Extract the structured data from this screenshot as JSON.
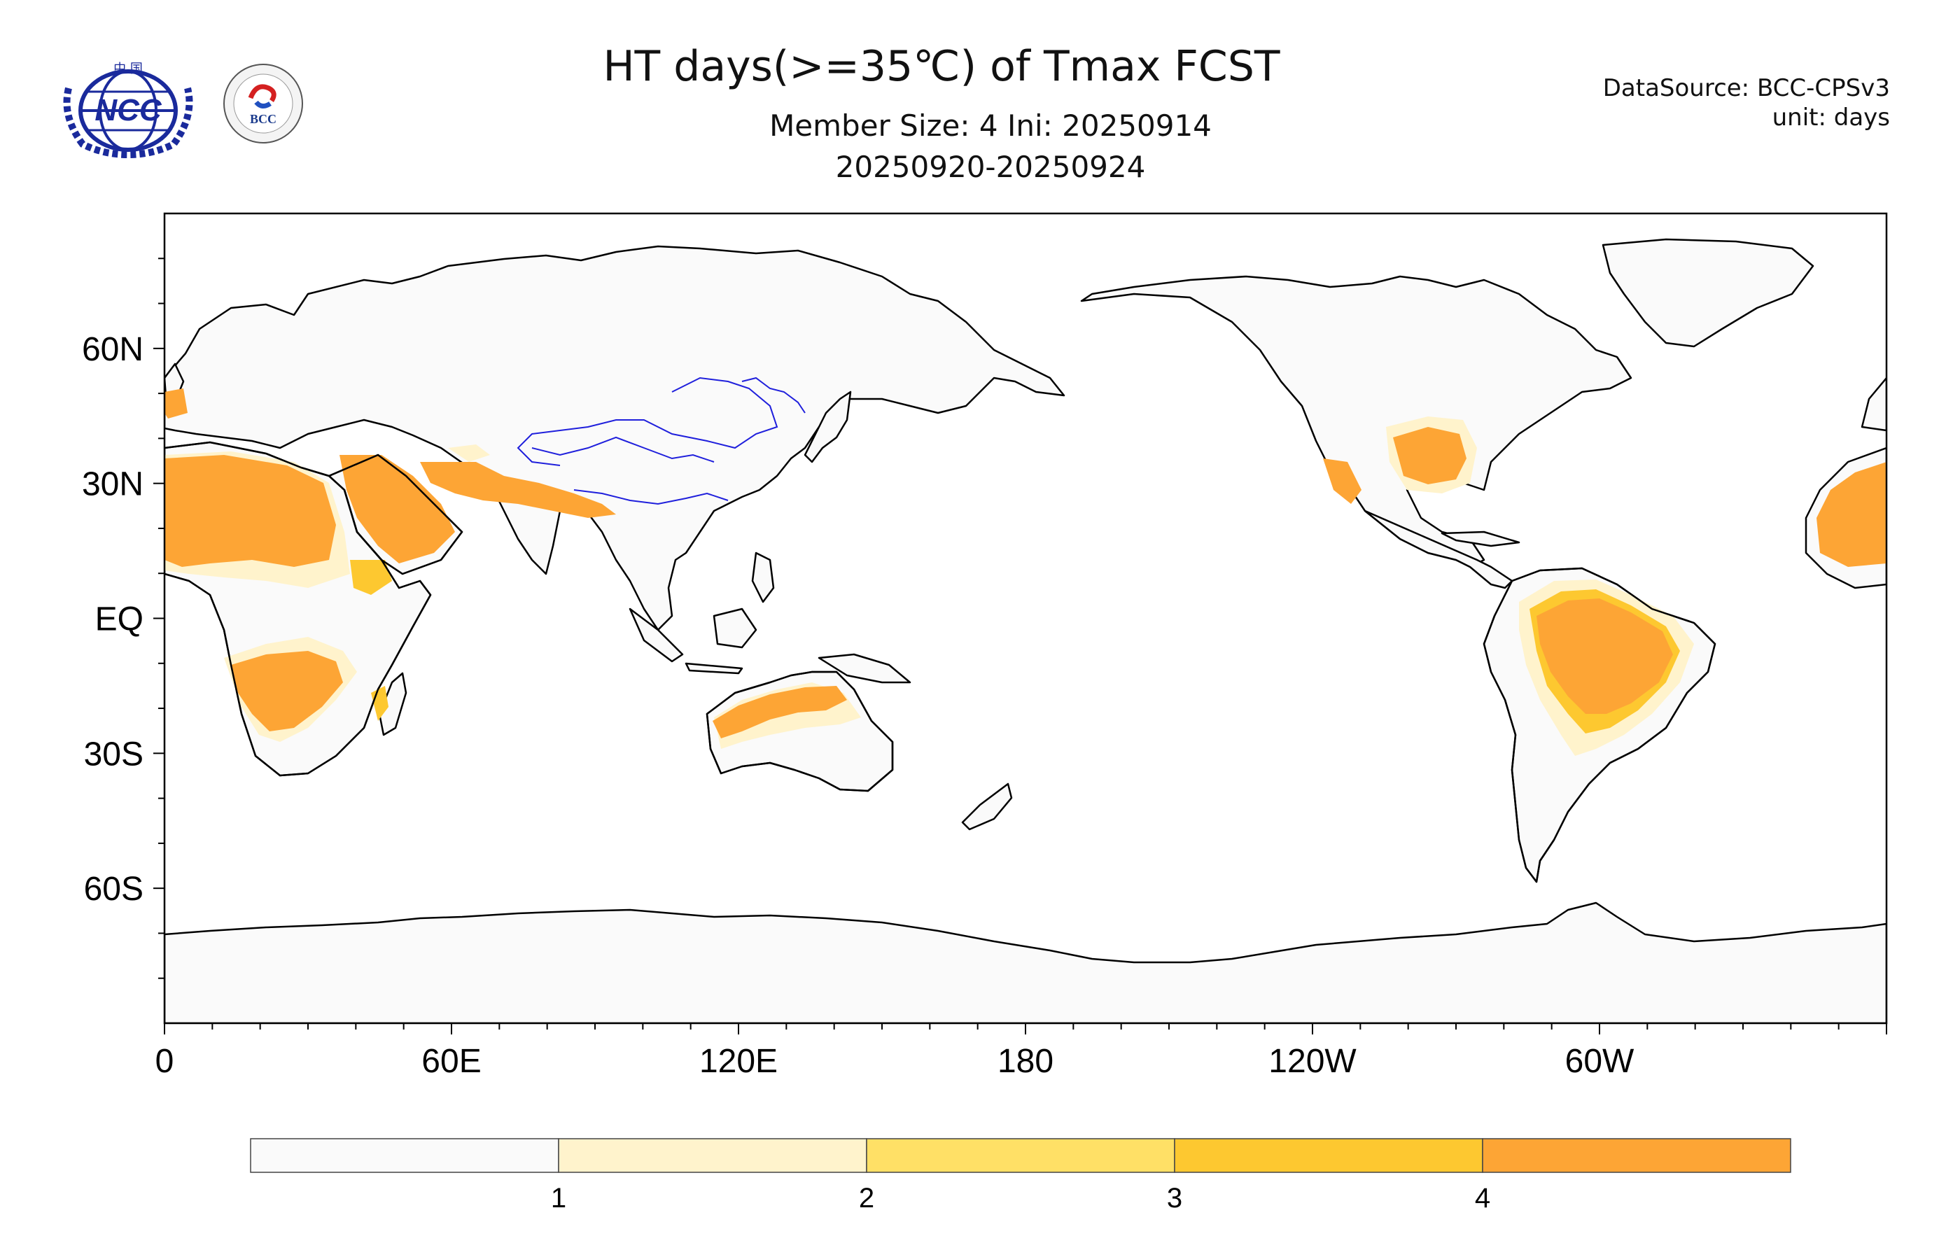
{
  "header": {
    "title": "HT days(>=35℃) of Tmax FCST",
    "subtitle_1": "Member Size: 4  Ini: 20250914",
    "subtitle_2": "20250920-20250924",
    "data_source": "DataSource: BCC-CPSv3",
    "unit": "unit: days"
  },
  "logos": {
    "ncc_text": "NCC",
    "ncc_top_text": "中 国",
    "bcc_text": "BCC"
  },
  "map": {
    "projection": "cylindrical-equidistant",
    "lon_range": [
      0,
      360
    ],
    "lat_range": [
      -90,
      90
    ],
    "x_tick_labels": [
      "0",
      "60E",
      "120E",
      "180",
      "120W",
      "60W"
    ],
    "y_tick_labels": [
      "60N",
      "30N",
      "EQ",
      "30S",
      "60S"
    ]
  },
  "colorbar": {
    "colors": [
      "#fafafa",
      "#fff3cc",
      "#ffe066",
      "#fdc830",
      "#fda535"
    ],
    "labels": [
      "1",
      "2",
      "3",
      "4"
    ]
  },
  "colors": {
    "land": "#fafafa",
    "coast": "#000000",
    "rivers": "#1f1fdc",
    "level1": "#fff3cc",
    "level2": "#ffe066",
    "level3": "#fdc830",
    "level4": "#fda535"
  }
}
